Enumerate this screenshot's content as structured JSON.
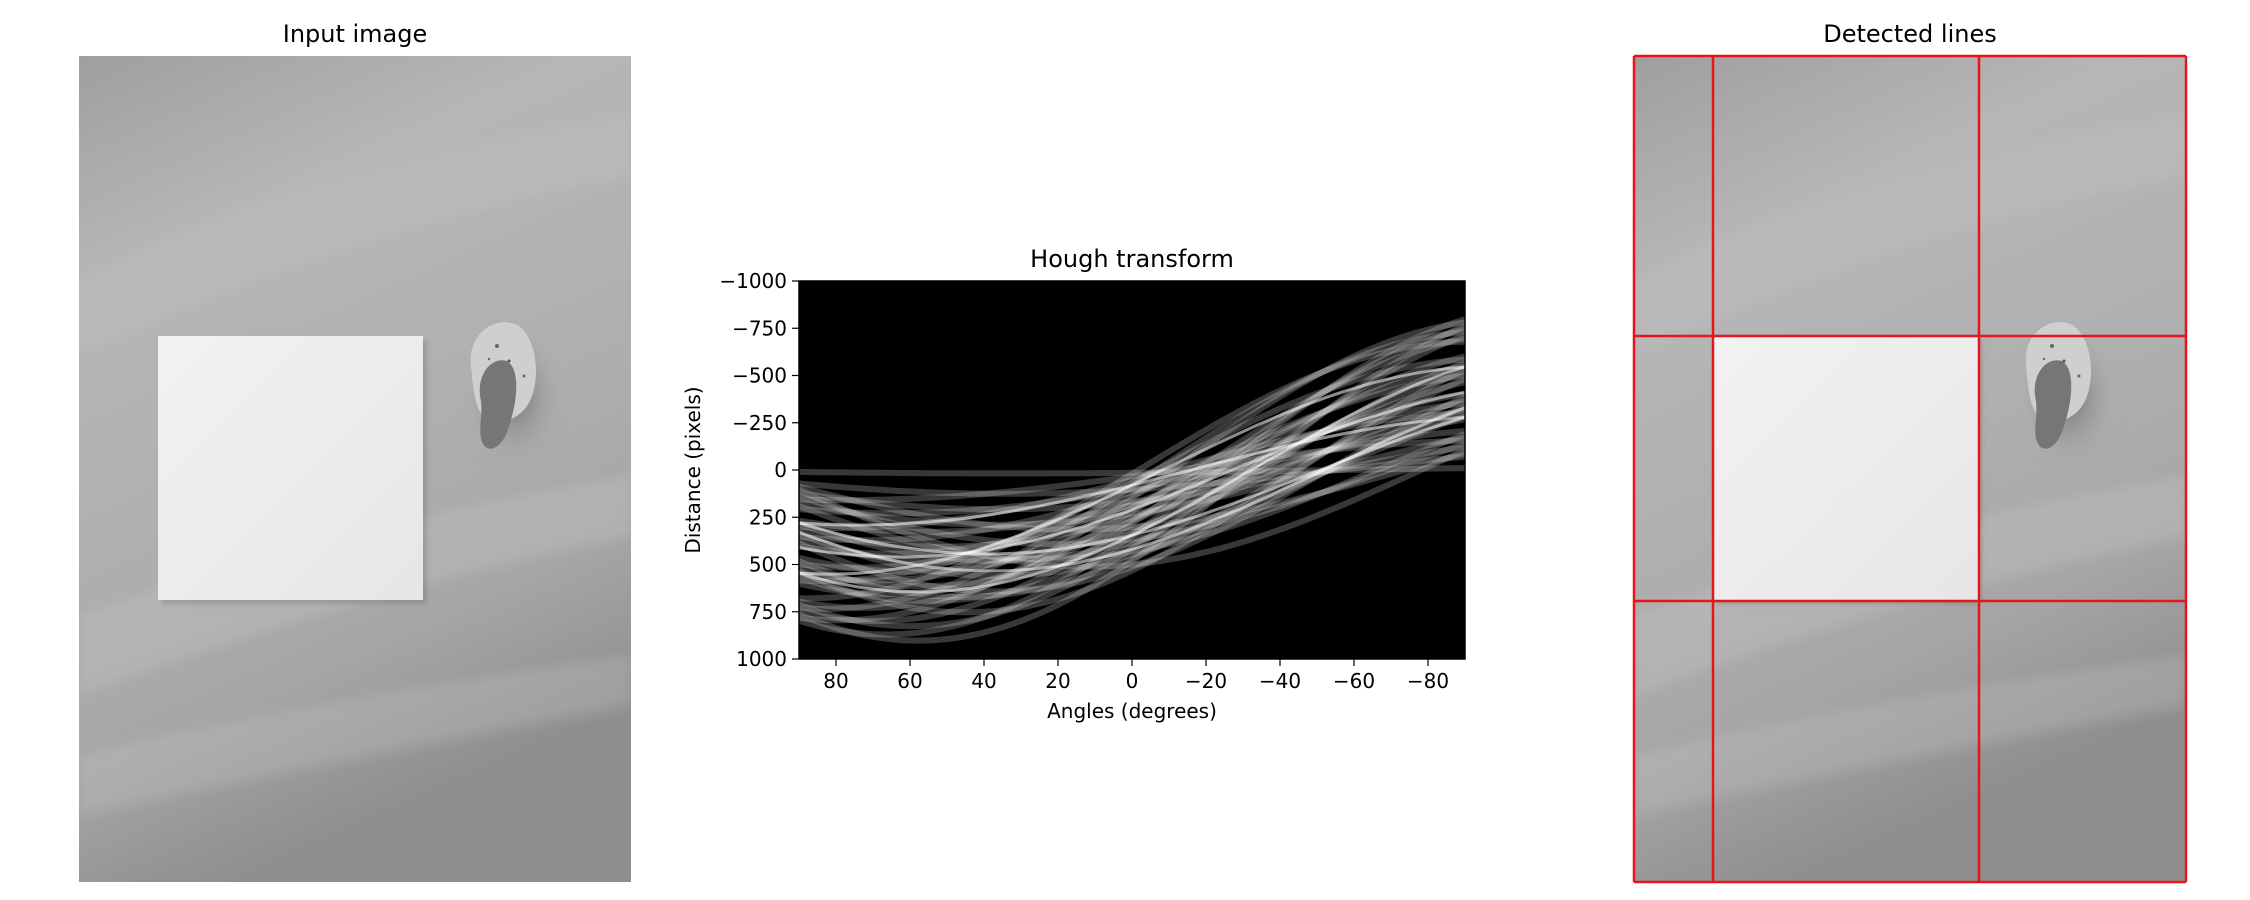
{
  "chart_data": [
    {
      "type": "image",
      "title": "Input image",
      "content": "grayscale photo of a square sheet of paper and a stone on a gray surface"
    },
    {
      "type": "heatmap",
      "title": "Hough transform",
      "xlabel": "Angles (degrees)",
      "ylabel": "Distance (pixels)",
      "xlim": [
        90,
        -90
      ],
      "ylim": [
        1000,
        -1000
      ],
      "x_ticks": [
        80,
        60,
        40,
        20,
        0,
        -20,
        -40,
        -60,
        -80
      ],
      "y_ticks": [
        -1000,
        -750,
        -500,
        -250,
        0,
        250,
        500,
        750,
        1000
      ],
      "colormap": "gray",
      "grid": false
    },
    {
      "type": "image",
      "title": "Detected lines",
      "line_color": "#e8141a",
      "line_count": 6
    }
  ],
  "colors": {
    "line": "#e8141a",
    "axis": "#000000",
    "background": "#ffffff"
  }
}
